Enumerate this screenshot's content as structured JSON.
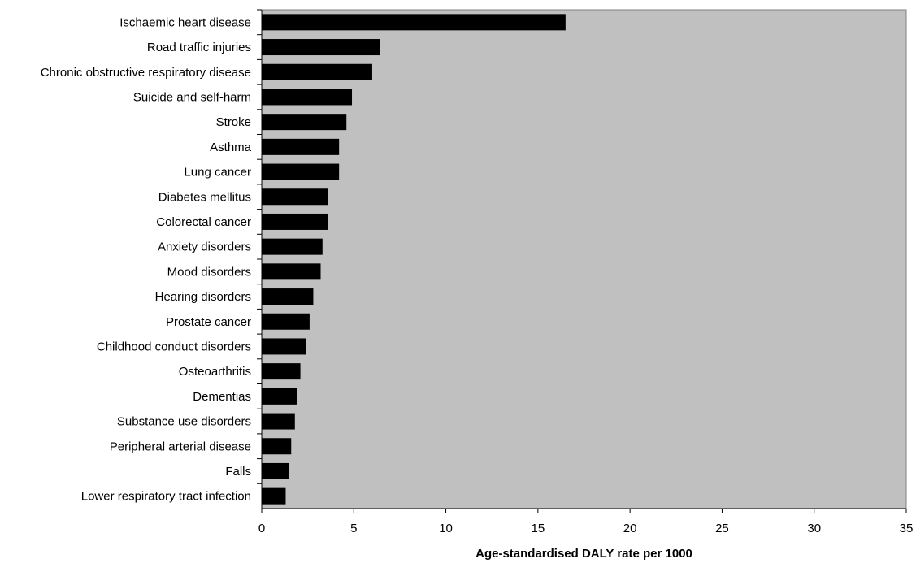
{
  "chart_data": {
    "type": "bar",
    "orientation": "horizontal",
    "title": "",
    "xlabel": "Age-standardised DALY rate per 1000",
    "ylabel": "",
    "xlim": [
      0,
      35
    ],
    "xticks": [
      0,
      5,
      10,
      15,
      20,
      25,
      30,
      35
    ],
    "grid": false,
    "legend": "none",
    "colors": {
      "plot_background": "#c0c0c0",
      "bar": "#000000"
    },
    "categories": [
      "Ischaemic heart disease",
      "Road traffic injuries",
      "Chronic obstructive respiratory disease",
      "Suicide and self-harm",
      "Stroke",
      "Asthma",
      "Lung cancer",
      "Diabetes mellitus",
      "Colorectal cancer",
      "Anxiety disorders",
      "Mood disorders",
      "Hearing disorders",
      "Prostate cancer",
      "Childhood conduct disorders",
      "Osteoarthritis",
      "Dementias",
      "Substance use disorders",
      "Peripheral arterial disease",
      "Falls",
      "Lower respiratory tract infection"
    ],
    "values": [
      16.5,
      6.4,
      6.0,
      4.9,
      4.6,
      4.2,
      4.2,
      3.6,
      3.6,
      3.3,
      3.2,
      2.8,
      2.6,
      2.4,
      2.1,
      1.9,
      1.8,
      1.6,
      1.5,
      1.3
    ]
  }
}
